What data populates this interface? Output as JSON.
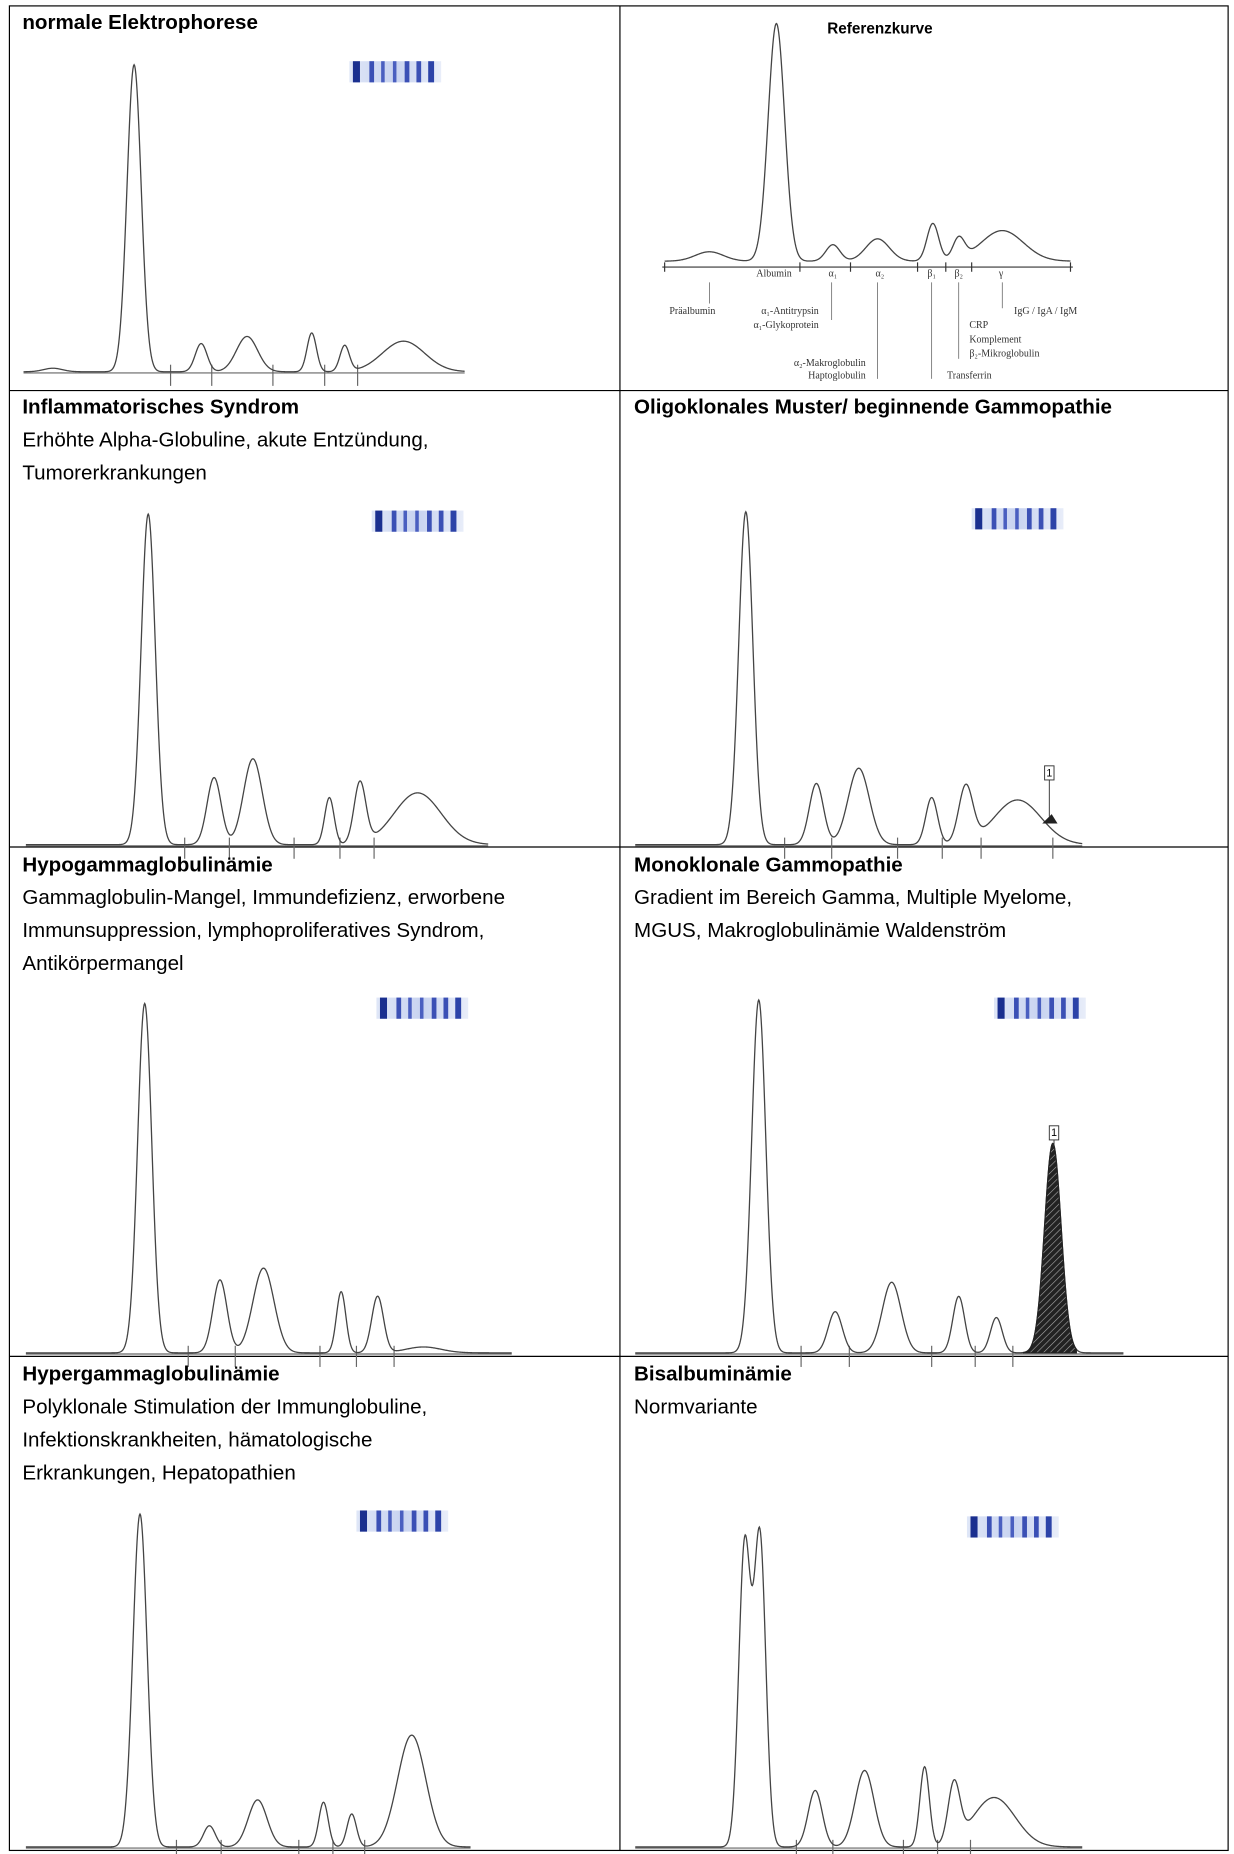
{
  "cells": [
    {
      "title": "normale Elektrophorese"
    },
    {
      "reference": {
        "title": "Referenzkurve",
        "fractions": [
          "Albumin",
          "α₁",
          "α₂",
          "β₁",
          "β₂",
          "γ"
        ],
        "proteins": [
          "Präalbumin",
          "α₁-Antitrypsin",
          "α₁-Glykoprotein",
          "α₂-Makroglobulin",
          "Haptoglobulin",
          "Transferrin",
          "CRP",
          "Komplement",
          "β₂-Mikroglobulin",
          "IgG / IgA / IgM"
        ]
      }
    },
    {
      "title": "Inflammatorisches Syndrom",
      "description": [
        "Erhöhte Alpha-Globuline, akute Entzündung,",
        "Tumorerkrankungen"
      ]
    },
    {
      "title": "Oligoklonales Muster/ beginnende Gammopathie",
      "marker": "1"
    },
    {
      "title": "Hypogammaglobulinämie",
      "description": [
        "Gammaglobulin-Mangel, Immundefizienz, erworbene",
        "Immunsuppression, lymphoproliferatives Syndrom,",
        "Antikörpermangel"
      ]
    },
    {
      "title": "Monoklonale Gammopathie",
      "description": [
        "Gradient im Bereich Gamma, Multiple Myelome,",
        "MGUS, Makroglobulinämie Waldenström"
      ],
      "marker": "1"
    },
    {
      "title": "Hypergammaglobulinämie",
      "description": [
        "Polyklonale Stimulation der Immunglobuline,",
        "Infektionskrankheiten, hämatologische",
        "Erkrankungen, Hepatopathien"
      ]
    },
    {
      "title": "Bisalbuminämie",
      "description": [
        "Normvariante"
      ]
    }
  ]
}
